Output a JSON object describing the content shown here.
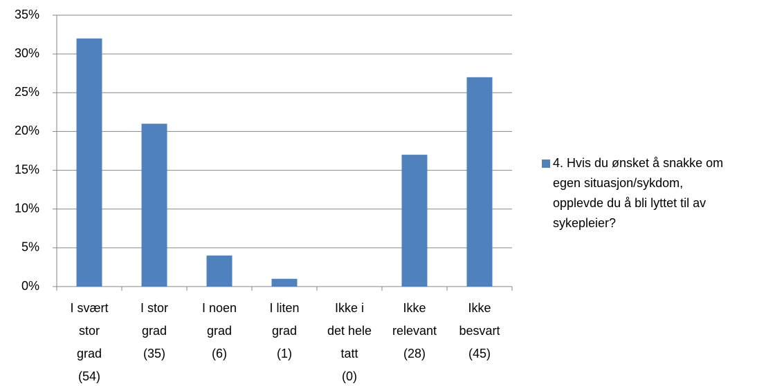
{
  "chart_data": {
    "type": "bar",
    "categories": [
      "I svært\nstor\ngrad\n(54)",
      "I stor\ngrad\n(35)",
      "I noen\ngrad\n(6)",
      "I liten\ngrad\n(1)",
      "Ikke i\ndet hele\ntatt\n(0)",
      "Ikke\nrelevant\n(28)",
      "Ikke\nbesvart\n(45)"
    ],
    "series": [
      {
        "name": "4. Hvis du ønsket å snakke om\negen situasjon/sykdom,\nopplevde du å bli lyttet til av\nsykepleier?",
        "color": "#4f81bd",
        "values": [
          32,
          21,
          4,
          1,
          0,
          17,
          27
        ]
      }
    ],
    "ylim": [
      0,
      35
    ],
    "yticks": [
      {
        "value": 0,
        "label": "0%"
      },
      {
        "value": 5,
        "label": "5%"
      },
      {
        "value": 10,
        "label": "10%"
      },
      {
        "value": 15,
        "label": "15%"
      },
      {
        "value": 20,
        "label": "20%"
      },
      {
        "value": 25,
        "label": "25%"
      },
      {
        "value": 30,
        "label": "30%"
      },
      {
        "value": 35,
        "label": "35%"
      }
    ],
    "grid": true,
    "legend": "right"
  }
}
